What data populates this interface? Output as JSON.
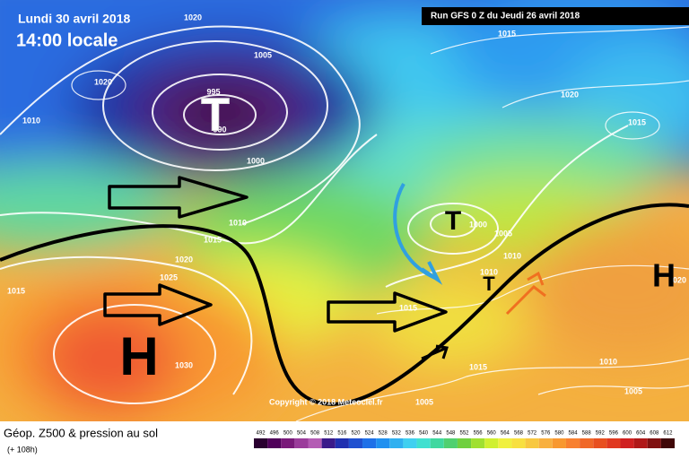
{
  "header": {
    "date": "Lundi 30 avril 2018",
    "time": "14:00 locale",
    "run": "Run GFS 0 Z du Jeudi 26 avril 2018"
  },
  "map": {
    "pressure_labels": [
      "1020",
      "1005",
      "1020",
      "995",
      "990",
      "1010",
      "1000",
      "1010",
      "1015",
      "1020",
      "1025",
      "1015",
      "1030",
      "1000",
      "1005",
      "1010",
      "1010",
      "1015",
      "1005",
      "1015",
      "1010",
      "1005",
      "1015",
      "1020",
      "1015",
      "1020"
    ],
    "symbols": [
      "T",
      "T",
      "T",
      "H",
      "H"
    ],
    "copyright": "Copyright © 2018 Meteociel.fr"
  },
  "footer": {
    "title": "Géop. Z500 & pression au sol",
    "lead": "(+ 108h)"
  },
  "legend": {
    "labels": [
      492,
      496,
      500,
      504,
      508,
      512,
      516,
      520,
      524,
      528,
      532,
      536,
      540,
      544,
      548,
      552,
      556,
      560,
      564,
      568,
      572,
      576,
      580,
      584,
      588,
      592,
      596,
      600,
      604,
      608,
      612
    ]
  }
}
